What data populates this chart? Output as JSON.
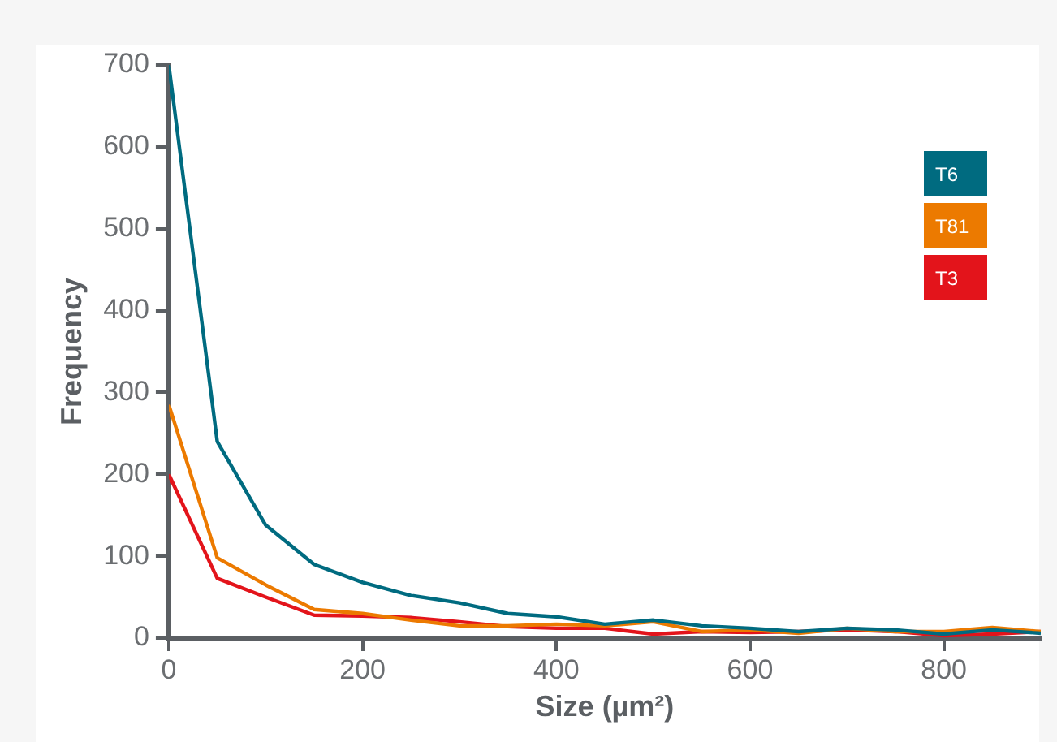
{
  "chart_data": {
    "type": "line",
    "xlabel": "Size (µm²)",
    "ylabel": "Frequency",
    "x": [
      0,
      50,
      100,
      150,
      200,
      250,
      300,
      350,
      400,
      450,
      500,
      550,
      600,
      650,
      700,
      750,
      800,
      850,
      900
    ],
    "xlim": [
      0,
      900
    ],
    "xticks": [
      0,
      200,
      400,
      600,
      800
    ],
    "ylim": [
      0,
      700
    ],
    "yticks": [
      0,
      100,
      200,
      300,
      400,
      500,
      600,
      700
    ],
    "grid": false,
    "legend": "top right",
    "marker": "none",
    "line_style": "solid",
    "series": [
      {
        "name": "T6",
        "color": "#006b80",
        "values": [
          700,
          240,
          138,
          90,
          68,
          52,
          43,
          30,
          26,
          17,
          22,
          15,
          12,
          8,
          12,
          10,
          5,
          10,
          6
        ]
      },
      {
        "name": "T81",
        "color": "#ec7a00",
        "values": [
          285,
          98,
          65,
          35,
          30,
          22,
          15,
          15,
          17,
          15,
          20,
          8,
          10,
          6,
          12,
          8,
          8,
          13,
          8
        ]
      },
      {
        "name": "T3",
        "color": "#e3141b",
        "values": [
          200,
          73,
          50,
          28,
          27,
          25,
          20,
          14,
          12,
          12,
          5,
          8,
          7,
          8,
          10,
          8,
          3,
          5,
          8
        ]
      }
    ]
  }
}
